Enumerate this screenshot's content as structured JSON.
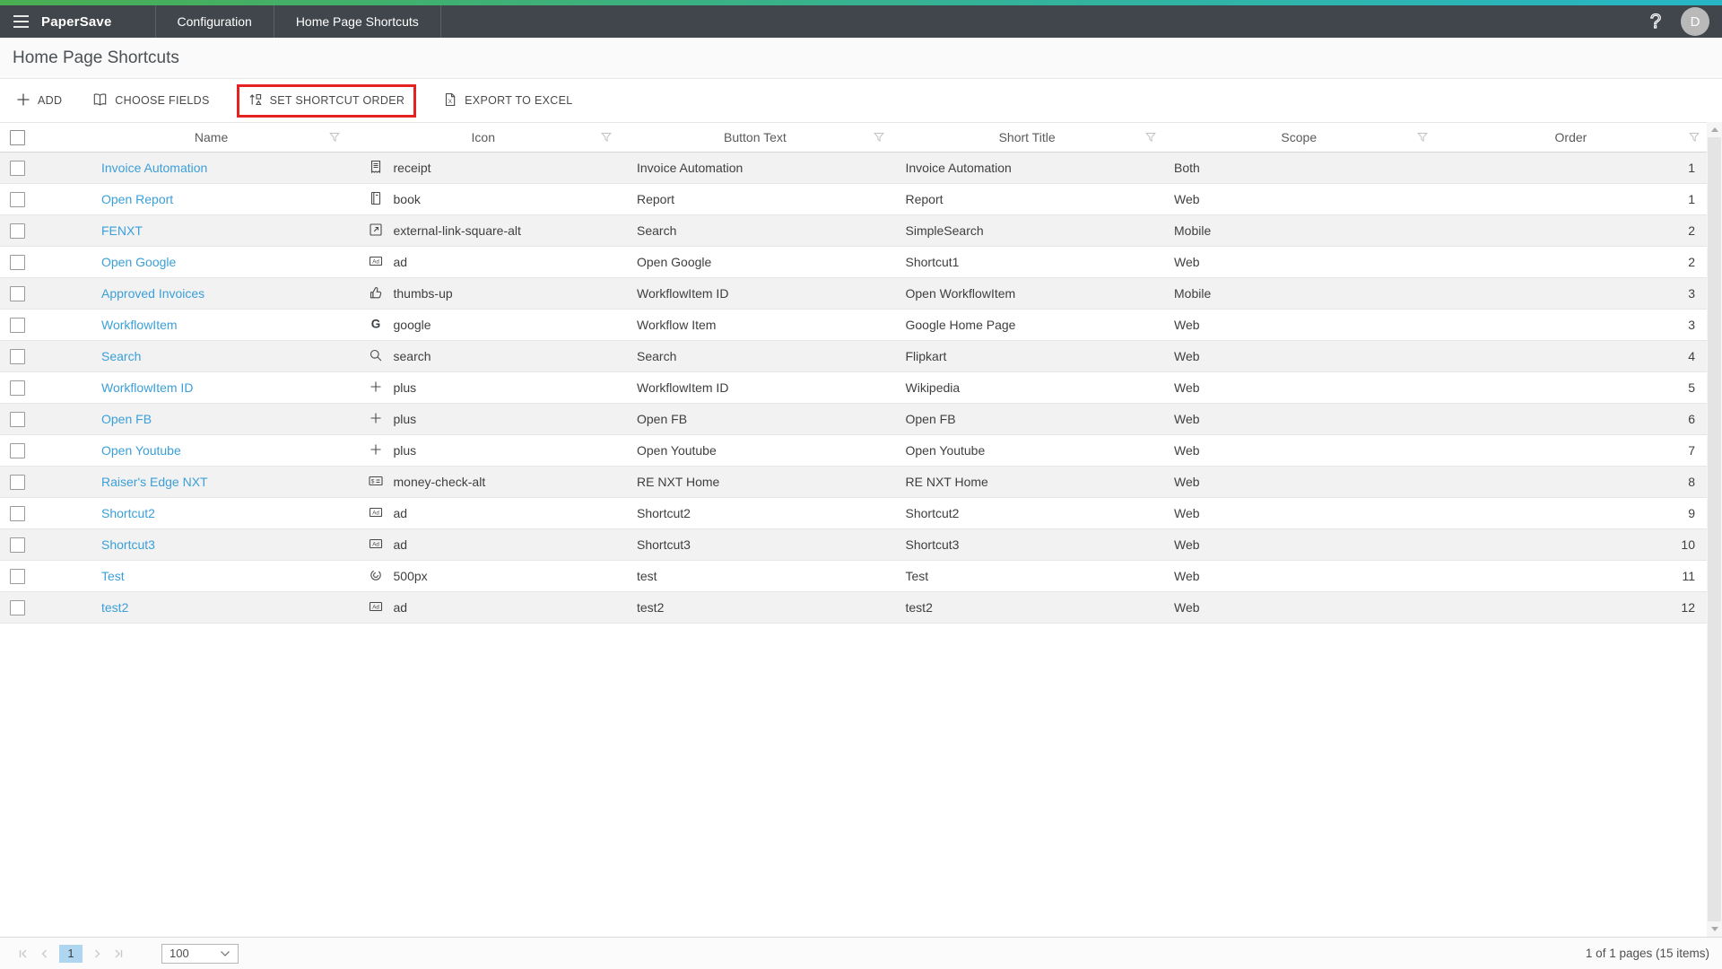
{
  "nav": {
    "brand": "PaperSave",
    "items": [
      "Configuration",
      "Home Page Shortcuts"
    ],
    "avatar_initial": "D",
    "help_icon": "?"
  },
  "page": {
    "title": "Home Page Shortcuts"
  },
  "toolbar": {
    "buttons": [
      {
        "label": "ADD",
        "icon": "plus-icon"
      },
      {
        "label": "CHOOSE FIELDS",
        "icon": "book-open-icon"
      },
      {
        "label": "SET SHORTCUT ORDER",
        "icon": "sort-order-icon",
        "highlighted": true
      },
      {
        "label": "EXPORT TO EXCEL",
        "icon": "excel-file-icon"
      }
    ],
    "highlight_color": "#e42320"
  },
  "table": {
    "columns": [
      "Name",
      "Icon",
      "Button Text",
      "Short Title",
      "Scope",
      "Order"
    ],
    "rows": [
      {
        "name": "Invoice Automation",
        "icon": "receipt",
        "button_text": "Invoice Automation",
        "short_title": "Invoice Automation",
        "scope": "Both",
        "order": "1"
      },
      {
        "name": "Open Report",
        "icon": "book",
        "button_text": "Report",
        "short_title": "Report",
        "scope": "Web",
        "order": "1"
      },
      {
        "name": "FENXT",
        "icon": "external-link-square-alt",
        "button_text": "Search",
        "short_title": "SimpleSearch",
        "scope": "Mobile",
        "order": "2"
      },
      {
        "name": "Open Google",
        "icon": "ad",
        "button_text": "Open Google",
        "short_title": "Shortcut1",
        "scope": "Web",
        "order": "2"
      },
      {
        "name": "Approved Invoices",
        "icon": "thumbs-up",
        "button_text": "WorkflowItem ID",
        "short_title": "Open WorkflowItem",
        "scope": "Mobile",
        "order": "3"
      },
      {
        "name": "WorkflowItem",
        "icon": "google",
        "button_text": "Workflow Item",
        "short_title": "Google Home Page",
        "scope": "Web",
        "order": "3"
      },
      {
        "name": "Search",
        "icon": "search",
        "button_text": "Search",
        "short_title": "Flipkart",
        "scope": "Web",
        "order": "4"
      },
      {
        "name": "WorkflowItem ID",
        "icon": "plus",
        "button_text": "WorkflowItem ID",
        "short_title": "Wikipedia",
        "scope": "Web",
        "order": "5"
      },
      {
        "name": "Open FB",
        "icon": "plus",
        "button_text": "Open FB",
        "short_title": "Open FB",
        "scope": "Web",
        "order": "6"
      },
      {
        "name": "Open Youtube",
        "icon": "plus",
        "button_text": "Open Youtube",
        "short_title": "Open Youtube",
        "scope": "Web",
        "order": "7"
      },
      {
        "name": "Raiser's Edge NXT",
        "icon": "money-check-alt",
        "button_text": "RE NXT Home",
        "short_title": "RE NXT Home",
        "scope": "Web",
        "order": "8"
      },
      {
        "name": "Shortcut2",
        "icon": "ad",
        "button_text": "Shortcut2",
        "short_title": "Shortcut2",
        "scope": "Web",
        "order": "9"
      },
      {
        "name": "Shortcut3",
        "icon": "ad",
        "button_text": "Shortcut3",
        "short_title": "Shortcut3",
        "scope": "Web",
        "order": "10"
      },
      {
        "name": "Test",
        "icon": "500px",
        "button_text": "test",
        "short_title": "Test",
        "scope": "Web",
        "order": "11"
      },
      {
        "name": "test2",
        "icon": "ad",
        "button_text": "test2",
        "short_title": "test2",
        "scope": "Web",
        "order": "12"
      }
    ]
  },
  "pagination": {
    "page": "1",
    "page_size": "100",
    "summary": "1 of 1 pages (15 items)"
  },
  "colors": {
    "accent_gradient_left": "#4aae52",
    "accent_gradient_right": "#27b6c6",
    "navbar": "#41464c",
    "link": "#3b9fd8",
    "highlight_red": "#e42320",
    "active_page_bg": "#aed6f0"
  }
}
